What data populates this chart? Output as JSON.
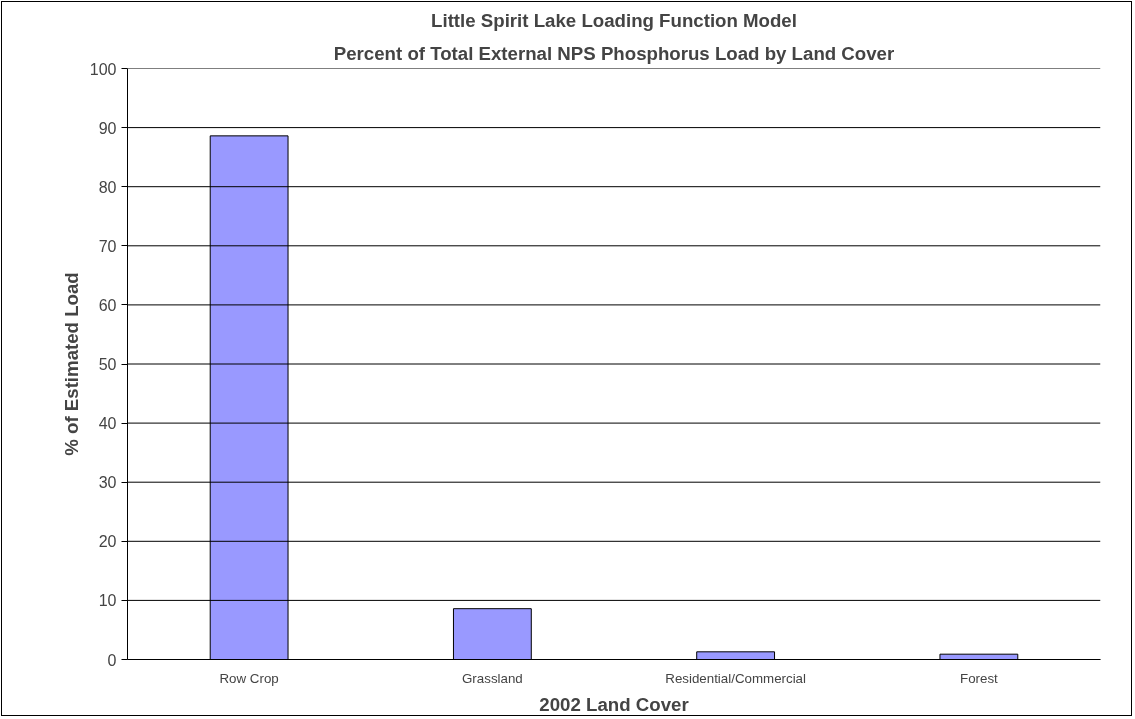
{
  "chart_data": {
    "type": "bar",
    "title": "Little Spirit Lake Loading Function Model",
    "subtitle": "Percent of Total External NPS Phosphorus Load by Land Cover",
    "xlabel": "2002 Land Cover",
    "ylabel": "% of Estimated Load",
    "categories": [
      "Row Crop",
      "Grassland",
      "Residential/Commercial",
      "Forest"
    ],
    "values": [
      88.6,
      8.6,
      1.3,
      0.9
    ],
    "color": "#9999ff",
    "ylim": [
      0,
      100
    ],
    "yticks": [
      0,
      10,
      20,
      30,
      40,
      50,
      60,
      70,
      80,
      90,
      100
    ],
    "grid": "y"
  }
}
